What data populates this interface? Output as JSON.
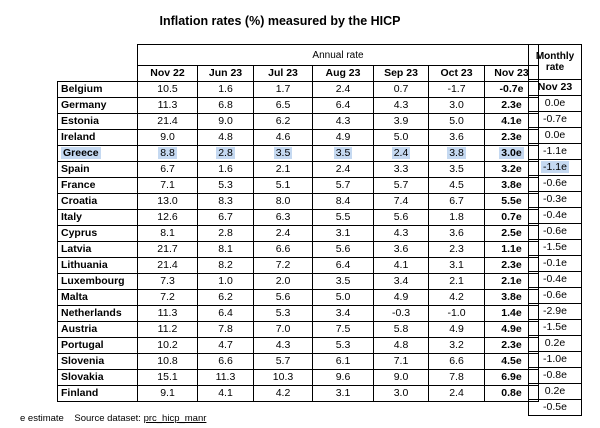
{
  "title": "Inflation rates (%) measured by the HICP",
  "annual_header": "Annual rate",
  "monthly_header": "Monthly rate",
  "columns": [
    "Nov 22",
    "Jun 23",
    "Jul 23",
    "Aug 23",
    "Sep 23",
    "Oct 23",
    "Nov 23"
  ],
  "monthly_column": "Nov 23",
  "rows": [
    {
      "country": "Belgium",
      "values": [
        "10.5",
        "1.6",
        "1.7",
        "2.4",
        "0.7",
        "-1.7",
        "-0.7e"
      ],
      "monthly": "0.0e"
    },
    {
      "country": "Germany",
      "values": [
        "11.3",
        "6.8",
        "6.5",
        "6.4",
        "4.3",
        "3.0",
        "2.3e"
      ],
      "monthly": "-0.7e"
    },
    {
      "country": "Estonia",
      "values": [
        "21.4",
        "9.0",
        "6.2",
        "4.3",
        "3.9",
        "5.0",
        "4.1e"
      ],
      "monthly": "0.0e"
    },
    {
      "country": "Ireland",
      "values": [
        "9.0",
        "4.8",
        "4.6",
        "4.9",
        "5.0",
        "3.6",
        "2.3e"
      ],
      "monthly": "-1.1e"
    },
    {
      "country": "Greece",
      "values": [
        "8.8",
        "2.8",
        "3.5",
        "3.5",
        "2.4",
        "3.8",
        "3.0e"
      ],
      "monthly": "-1.1e",
      "highlight": true
    },
    {
      "country": "Spain",
      "values": [
        "6.7",
        "1.6",
        "2.1",
        "2.4",
        "3.3",
        "3.5",
        "3.2e"
      ],
      "monthly": "-0.6e"
    },
    {
      "country": "France",
      "values": [
        "7.1",
        "5.3",
        "5.1",
        "5.7",
        "5.7",
        "4.5",
        "3.8e"
      ],
      "monthly": "-0.3e"
    },
    {
      "country": "Croatia",
      "values": [
        "13.0",
        "8.3",
        "8.0",
        "8.4",
        "7.4",
        "6.7",
        "5.5e"
      ],
      "monthly": "-0.4e"
    },
    {
      "country": "Italy",
      "values": [
        "12.6",
        "6.7",
        "6.3",
        "5.5",
        "5.6",
        "1.8",
        "0.7e"
      ],
      "monthly": "-0.6e"
    },
    {
      "country": "Cyprus",
      "values": [
        "8.1",
        "2.8",
        "2.4",
        "3.1",
        "4.3",
        "3.6",
        "2.5e"
      ],
      "monthly": "-1.5e"
    },
    {
      "country": "Latvia",
      "values": [
        "21.7",
        "8.1",
        "6.6",
        "5.6",
        "3.6",
        "2.3",
        "1.1e"
      ],
      "monthly": "-0.1e"
    },
    {
      "country": "Lithuania",
      "values": [
        "21.4",
        "8.2",
        "7.2",
        "6.4",
        "4.1",
        "3.1",
        "2.3e"
      ],
      "monthly": "-0.4e"
    },
    {
      "country": "Luxembourg",
      "values": [
        "7.3",
        "1.0",
        "2.0",
        "3.5",
        "3.4",
        "2.1",
        "2.1e"
      ],
      "monthly": "-0.6e"
    },
    {
      "country": "Malta",
      "values": [
        "7.2",
        "6.2",
        "5.6",
        "5.0",
        "4.9",
        "4.2",
        "3.8e"
      ],
      "monthly": "-2.9e"
    },
    {
      "country": "Netherlands",
      "values": [
        "11.3",
        "6.4",
        "5.3",
        "3.4",
        "-0.3",
        "-1.0",
        "1.4e"
      ],
      "monthly": "-1.5e"
    },
    {
      "country": "Austria",
      "values": [
        "11.2",
        "7.8",
        "7.0",
        "7.5",
        "5.8",
        "4.9",
        "4.9e"
      ],
      "monthly": "0.2e"
    },
    {
      "country": "Portugal",
      "values": [
        "10.2",
        "4.7",
        "4.3",
        "5.3",
        "4.8",
        "3.2",
        "2.3e"
      ],
      "monthly": "-1.0e"
    },
    {
      "country": "Slovenia",
      "values": [
        "10.8",
        "6.6",
        "5.7",
        "6.1",
        "7.1",
        "6.6",
        "4.5e"
      ],
      "monthly": "-0.8e"
    },
    {
      "country": "Slovakia",
      "values": [
        "15.1",
        "11.3",
        "10.3",
        "9.6",
        "9.0",
        "7.8",
        "6.9e"
      ],
      "monthly": "0.2e"
    },
    {
      "country": "Finland",
      "values": [
        "9.1",
        "4.1",
        "4.2",
        "3.1",
        "3.0",
        "2.4",
        "0.8e"
      ],
      "monthly": "-0.5e"
    }
  ],
  "footer": {
    "note": "e estimate",
    "source_label": "Source dataset:",
    "source_link": "prc_hicp_manr"
  },
  "colors": {
    "highlight": "#c5d9f1"
  }
}
